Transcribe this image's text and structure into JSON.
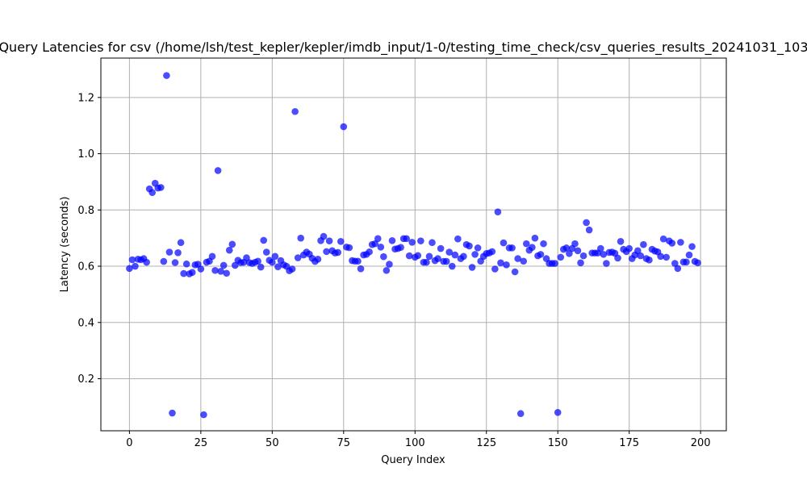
{
  "chart_data": {
    "type": "scatter",
    "title": "Query Latencies for csv (/home/lsh/test_kepler/kepler/imdb_input/1-0/testing_time_check/csv_queries_results_20241031_103",
    "xlabel": "Query Index",
    "ylabel": "Latency (seconds)",
    "xlim": [
      -10,
      209
    ],
    "ylim": [
      0.015,
      1.34
    ],
    "xticks": [
      0,
      25,
      50,
      75,
      100,
      125,
      150,
      175,
      200
    ],
    "yticks": [
      0.2,
      0.4,
      0.6,
      0.8,
      1.0,
      1.2
    ],
    "grid": true,
    "marker_color": "#0000ff",
    "marker_alpha": 0.7,
    "x": [
      0,
      1,
      2,
      3,
      4,
      5,
      6,
      7,
      8,
      9,
      10,
      11,
      12,
      13,
      14,
      15,
      16,
      17,
      18,
      19,
      20,
      21,
      22,
      23,
      24,
      25,
      26,
      27,
      28,
      29,
      30,
      31,
      32,
      33,
      34,
      35,
      36,
      37,
      38,
      39,
      40,
      41,
      42,
      43,
      44,
      45,
      46,
      47,
      48,
      49,
      50,
      51,
      52,
      53,
      54,
      55,
      56,
      57,
      58,
      59,
      60,
      61,
      62,
      63,
      64,
      65,
      66,
      67,
      68,
      69,
      70,
      71,
      72,
      73,
      74,
      75,
      76,
      77,
      78,
      79,
      80,
      81,
      82,
      83,
      84,
      85,
      86,
      87,
      88,
      89,
      90,
      91,
      92,
      93,
      94,
      95,
      96,
      97,
      98,
      99,
      100,
      101,
      102,
      103,
      104,
      105,
      106,
      107,
      108,
      109,
      110,
      111,
      112,
      113,
      114,
      115,
      116,
      117,
      118,
      119,
      120,
      121,
      122,
      123,
      124,
      125,
      126,
      127,
      128,
      129,
      130,
      131,
      132,
      133,
      134,
      135,
      136,
      137,
      138,
      139,
      140,
      141,
      142,
      143,
      144,
      145,
      146,
      147,
      148,
      149,
      150,
      151,
      152,
      153,
      154,
      155,
      156,
      157,
      158,
      159,
      160,
      161,
      162,
      163,
      164,
      165,
      166,
      167,
      168,
      169,
      170,
      171,
      172,
      173,
      174,
      175,
      176,
      177,
      178,
      179,
      180,
      181,
      182,
      183,
      184,
      185,
      186,
      187,
      188,
      189,
      190,
      191,
      192,
      193,
      194,
      195,
      196,
      197,
      198,
      199
    ],
    "y": [
      0.592,
      0.623,
      0.6,
      0.625,
      0.623,
      0.627,
      0.614,
      0.875,
      0.862,
      0.895,
      0.878,
      0.88,
      0.617,
      1.278,
      0.65,
      0.078,
      0.613,
      0.648,
      0.684,
      0.574,
      0.608,
      0.573,
      0.578,
      0.605,
      0.607,
      0.59,
      0.072,
      0.614,
      0.618,
      0.635,
      0.585,
      0.94,
      0.582,
      0.603,
      0.575,
      0.657,
      0.678,
      0.603,
      0.621,
      0.613,
      0.614,
      0.63,
      0.613,
      0.61,
      0.614,
      0.618,
      0.597,
      0.692,
      0.65,
      0.621,
      0.614,
      0.635,
      0.598,
      0.62,
      0.605,
      0.6,
      0.584,
      0.59,
      1.15,
      0.63,
      0.7,
      0.64,
      0.65,
      0.643,
      0.628,
      0.617,
      0.625,
      0.691,
      0.706,
      0.652,
      0.69,
      0.655,
      0.647,
      0.649,
      0.688,
      1.096,
      0.668,
      0.666,
      0.62,
      0.618,
      0.618,
      0.591,
      0.64,
      0.642,
      0.651,
      0.677,
      0.68,
      0.698,
      0.668,
      0.634,
      0.585,
      0.607,
      0.691,
      0.661,
      0.663,
      0.667,
      0.698,
      0.698,
      0.637,
      0.685,
      0.632,
      0.638,
      0.69,
      0.614,
      0.614,
      0.635,
      0.684,
      0.62,
      0.627,
      0.663,
      0.617,
      0.617,
      0.65,
      0.6,
      0.64,
      0.697,
      0.627,
      0.635,
      0.677,
      0.672,
      0.596,
      0.642,
      0.665,
      0.618,
      0.635,
      0.645,
      0.647,
      0.652,
      0.59,
      0.793,
      0.612,
      0.683,
      0.605,
      0.665,
      0.665,
      0.58,
      0.627,
      0.076,
      0.618,
      0.68,
      0.657,
      0.667,
      0.7,
      0.637,
      0.642,
      0.68,
      0.627,
      0.61,
      0.61,
      0.61,
      0.08,
      0.632,
      0.66,
      0.665,
      0.645,
      0.663,
      0.68,
      0.655,
      0.612,
      0.637,
      0.755,
      0.729,
      0.647,
      0.647,
      0.647,
      0.663,
      0.642,
      0.61,
      0.649,
      0.65,
      0.646,
      0.629,
      0.688,
      0.66,
      0.652,
      0.663,
      0.627,
      0.64,
      0.655,
      0.637,
      0.677,
      0.627,
      0.622,
      0.66,
      0.654,
      0.651,
      0.635,
      0.697,
      0.632,
      0.69,
      0.682,
      0.61,
      0.592,
      0.685,
      0.615,
      0.615,
      0.64,
      0.67,
      0.617,
      0.612
    ]
  }
}
